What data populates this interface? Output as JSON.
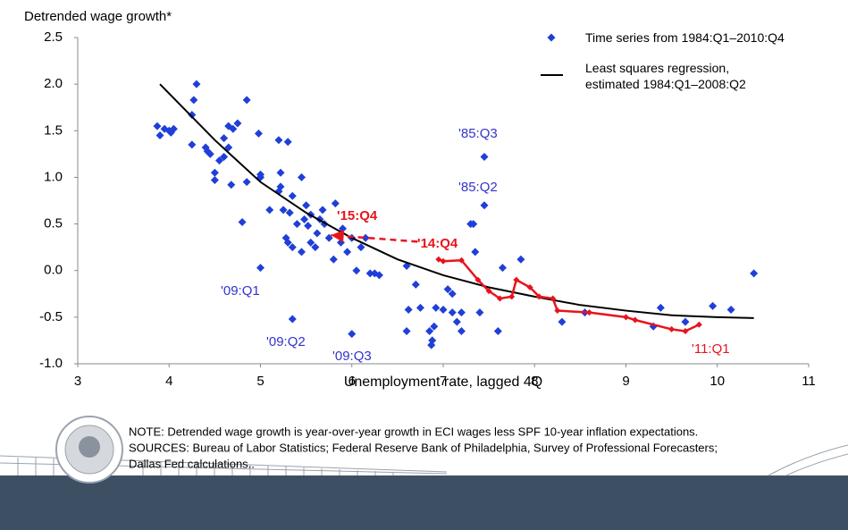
{
  "chart_data": {
    "type": "scatter",
    "y_axis_title": "Detrended wage growth*",
    "x_axis_title": "Unemployment rate, lagged 4Q",
    "xlim": [
      3,
      11
    ],
    "xticks": [
      3,
      4,
      5,
      6,
      7,
      8,
      9,
      10,
      11
    ],
    "ylim": [
      -1,
      2.5
    ],
    "yticks": [
      {
        "value": -1,
        "label": "-1.0"
      },
      -0.5,
      {
        "value": 0,
        "label": "0.0"
      },
      0.5,
      {
        "value": 1,
        "label": "1.0"
      },
      1.5,
      {
        "value": 2,
        "label": "2.0"
      },
      2.5
    ],
    "grid": false,
    "legend": "top-right",
    "series": [
      {
        "name": "Time series from 1984:Q1–2010:Q4",
        "color": "#1f3fd8",
        "marker": "diamond",
        "x": [
          3.87,
          3.9,
          3.95,
          4.0,
          4.02,
          4.05,
          4.25,
          4.25,
          4.27,
          4.3,
          4.4,
          4.42,
          4.45,
          4.5,
          4.5,
          4.55,
          4.6,
          4.6,
          4.65,
          4.65,
          4.68,
          4.7,
          4.75,
          4.8,
          4.85,
          4.85,
          5.0,
          5.0,
          4.98,
          5.0,
          5.1,
          5.2,
          5.22,
          5.2,
          5.22,
          5.25,
          5.3,
          5.28,
          5.3,
          5.32,
          5.35,
          5.35,
          5.35,
          5.4,
          5.45,
          5.45,
          5.48,
          5.5,
          5.52,
          5.55,
          5.55,
          5.6,
          5.62,
          5.65,
          5.68,
          5.7,
          5.75,
          5.8,
          5.82,
          5.88,
          5.9,
          5.95,
          6.0,
          6.0,
          6.05,
          6.1,
          6.15,
          6.2,
          6.25,
          6.3,
          6.6,
          6.6,
          6.62,
          6.7,
          6.75,
          6.85,
          6.87,
          6.88,
          6.9,
          6.92,
          7.0,
          7.05,
          7.1,
          7.1,
          7.15,
          7.2,
          7.2,
          7.3,
          7.33,
          7.35,
          7.4,
          7.45,
          7.45,
          7.6,
          7.65,
          7.85,
          8.3,
          8.55,
          9.3,
          9.38,
          9.65,
          9.95,
          10.15,
          10.4
        ],
        "values": [
          1.55,
          1.45,
          1.52,
          1.5,
          1.48,
          1.52,
          1.35,
          1.67,
          1.83,
          2.0,
          1.32,
          1.28,
          1.25,
          1.05,
          0.97,
          1.18,
          1.22,
          1.42,
          1.55,
          1.32,
          0.92,
          1.52,
          1.58,
          0.52,
          0.95,
          1.83,
          1.0,
          1.03,
          1.47,
          0.03,
          0.65,
          0.85,
          0.9,
          1.4,
          1.05,
          0.65,
          1.38,
          0.35,
          0.3,
          0.62,
          0.25,
          0.8,
          -0.52,
          0.5,
          1.0,
          0.2,
          0.55,
          0.7,
          0.48,
          0.6,
          0.3,
          0.25,
          0.4,
          0.55,
          0.65,
          0.5,
          0.35,
          0.12,
          0.72,
          0.3,
          0.45,
          0.2,
          0.35,
          -0.68,
          0.0,
          0.25,
          0.35,
          -0.03,
          -0.03,
          -0.05,
          0.05,
          -0.65,
          -0.42,
          -0.15,
          -0.4,
          -0.65,
          -0.8,
          -0.75,
          -0.6,
          -0.4,
          -0.42,
          -0.2,
          -0.25,
          -0.45,
          -0.55,
          -0.45,
          -0.65,
          0.5,
          0.5,
          0.2,
          -0.45,
          1.22,
          0.7,
          -0.65,
          0.03,
          0.12,
          -0.55,
          -0.45,
          -0.6,
          -0.4,
          -0.55,
          -0.38,
          -0.42,
          -0.03
        ]
      },
      {
        "name": "Least squares regression, estimated 1984:Q1–2008:Q2",
        "color": "#000000",
        "marker": "line",
        "x": [
          3.9,
          4.5,
          5,
          5.5,
          6,
          6.5,
          7,
          7.5,
          8,
          8.5,
          9,
          9.5,
          10,
          10.4
        ],
        "values": [
          2.0,
          1.4,
          0.95,
          0.62,
          0.35,
          0.12,
          -0.05,
          -0.18,
          -0.28,
          -0.37,
          -0.43,
          -0.48,
          -0.5,
          -0.51
        ]
      }
    ],
    "highlight": {
      "color": "#e8141c",
      "x": [
        9.8,
        9.65,
        9.5,
        9.1,
        9.0,
        8.6,
        8.25,
        8.2,
        8.05,
        7.95,
        7.8,
        7.75,
        7.62,
        7.5,
        7.38,
        7.2,
        7.0,
        6.95
      ],
      "values": [
        -0.58,
        -0.65,
        -0.63,
        -0.53,
        -0.5,
        -0.45,
        -0.43,
        -0.3,
        -0.28,
        -0.18,
        -0.1,
        -0.28,
        -0.3,
        -0.22,
        -0.1,
        0.11,
        0.1,
        0.12
      ]
    },
    "projection": {
      "color": "#e8141c",
      "x": [
        6.72,
        5.77
      ],
      "values": [
        0.31,
        0.38
      ]
    },
    "annotations": [
      {
        "text": "'85:Q3",
        "color": "#3333cc"
      },
      {
        "text": "'85:Q2",
        "color": "#3333cc"
      },
      {
        "text": "'09:Q1",
        "color": "#3333cc"
      },
      {
        "text": "'09:Q2",
        "color": "#3333cc"
      },
      {
        "text": "'09:Q3",
        "color": "#3333cc"
      },
      {
        "text": "'15:Q4",
        "color": "#e8141c"
      },
      {
        "text": "'14:Q4",
        "color": "#e8141c"
      },
      {
        "text": "'11:Q1",
        "color": "#e8141c"
      }
    ],
    "notes": [
      "NOTE: Detrended wage growth is year-over-year growth in ECI wages less SPF 10-year inflation expectations.",
      "SOURCES: Bureau of Labor Statistics; Federal Reserve Bank of Philadelphia, Survey of Professional Forecasters;",
      "Dallas Fed calculations.."
    ]
  }
}
